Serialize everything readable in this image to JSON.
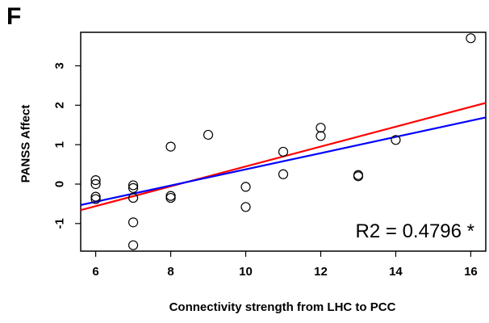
{
  "panel_label": "F",
  "chart_data": {
    "type": "scatter",
    "xlabel": "Connectivity strength from LHC to PCC",
    "ylabel": "PANSS  Affect",
    "xlim": [
      5.6,
      16.4
    ],
    "ylim": [
      -1.7,
      3.85
    ],
    "xticks": [
      6,
      8,
      10,
      12,
      14,
      16
    ],
    "yticks": [
      -1,
      0,
      1,
      2,
      3
    ],
    "grid": false,
    "annotation": "R2 = 0.4796 *",
    "points": [
      {
        "x": 6,
        "y": 0.1
      },
      {
        "x": 6,
        "y": 0.0
      },
      {
        "x": 6,
        "y": -0.32
      },
      {
        "x": 6,
        "y": -0.38
      },
      {
        "x": 7,
        "y": -0.03
      },
      {
        "x": 7,
        "y": -0.1
      },
      {
        "x": 7,
        "y": -0.35
      },
      {
        "x": 7,
        "y": -0.97
      },
      {
        "x": 7,
        "y": -1.55
      },
      {
        "x": 8,
        "y": 0.95
      },
      {
        "x": 8,
        "y": -0.3
      },
      {
        "x": 8,
        "y": -0.35
      },
      {
        "x": 9,
        "y": 1.25
      },
      {
        "x": 10,
        "y": -0.07
      },
      {
        "x": 10,
        "y": -0.58
      },
      {
        "x": 11,
        "y": 0.82
      },
      {
        "x": 11,
        "y": 0.25
      },
      {
        "x": 12,
        "y": 1.43
      },
      {
        "x": 12,
        "y": 1.22
      },
      {
        "x": 13,
        "y": 0.23
      },
      {
        "x": 13,
        "y": 0.2
      },
      {
        "x": 14,
        "y": 1.12
      },
      {
        "x": 16,
        "y": 3.7
      }
    ],
    "fit_lines": [
      {
        "color": "#ff0000",
        "x": [
          5.6,
          16.4
        ],
        "y": [
          -0.66,
          2.06
        ]
      },
      {
        "color": "#0000ff",
        "x": [
          5.6,
          16.4
        ],
        "y": [
          -0.53,
          1.69
        ]
      }
    ]
  }
}
